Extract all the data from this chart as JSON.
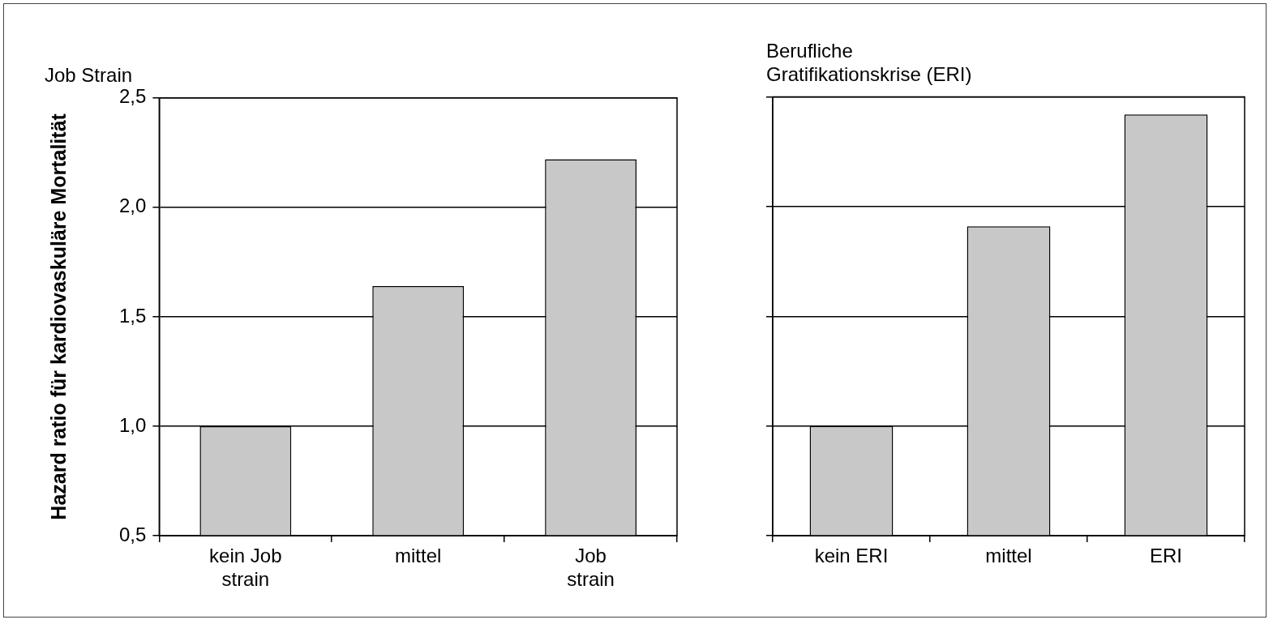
{
  "chart_data": [
    {
      "type": "bar",
      "title": "Job Strain",
      "ylabel": "Hazard ratio für kardiovaskuläre Mortalität",
      "categories": [
        "kein Job\nstrain",
        "mittel",
        "Job\nstrain"
      ],
      "values": [
        1.0,
        1.64,
        2.22
      ],
      "color": "#c8c8c8",
      "ylim": [
        0.5,
        2.5
      ],
      "yticks": [
        {
          "value": 0.5,
          "label": "0,5"
        },
        {
          "value": 1.0,
          "label": "1,0"
        },
        {
          "value": 1.5,
          "label": "1,5"
        },
        {
          "value": 2.0,
          "label": "2,0"
        },
        {
          "value": 2.5,
          "label": "2,5"
        }
      ],
      "grid": "y"
    },
    {
      "type": "bar",
      "title": "Berufliche\nGratifikationskrise (ERI)",
      "categories": [
        "kein ERI",
        "mittel",
        "ERI"
      ],
      "values": [
        1.0,
        1.91,
        2.42
      ],
      "color": "#c8c8c8",
      "ylim": [
        0.5,
        2.5
      ],
      "yticks": [
        {
          "value": 0.5,
          "label": null
        },
        {
          "value": 1.0,
          "label": null
        },
        {
          "value": 1.5,
          "label": null
        },
        {
          "value": 2.0,
          "label": null
        },
        {
          "value": 2.5,
          "label": null
        }
      ],
      "grid": "y",
      "tick_labels": "x"
    }
  ]
}
